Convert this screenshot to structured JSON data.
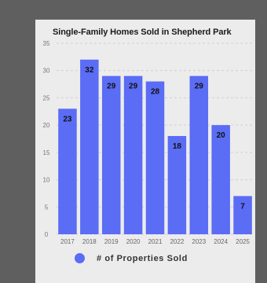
{
  "chart_data": {
    "type": "bar",
    "title": "Single-Family Homes Sold in Shepherd Park",
    "categories": [
      "2017",
      "2018",
      "2019",
      "2020",
      "2021",
      "2022",
      "2023",
      "2024",
      "2025"
    ],
    "series": [
      {
        "name": "# of Properties Sold",
        "values": [
          23,
          32,
          29,
          29,
          28,
          18,
          29,
          20,
          7
        ]
      }
    ],
    "ylim": [
      0,
      35
    ],
    "yticks": [
      0,
      5,
      10,
      15,
      20,
      25,
      30,
      35
    ],
    "grid": true,
    "legend": "bottom",
    "bar_color": "#5b6cf5",
    "label_color": "#111111"
  }
}
